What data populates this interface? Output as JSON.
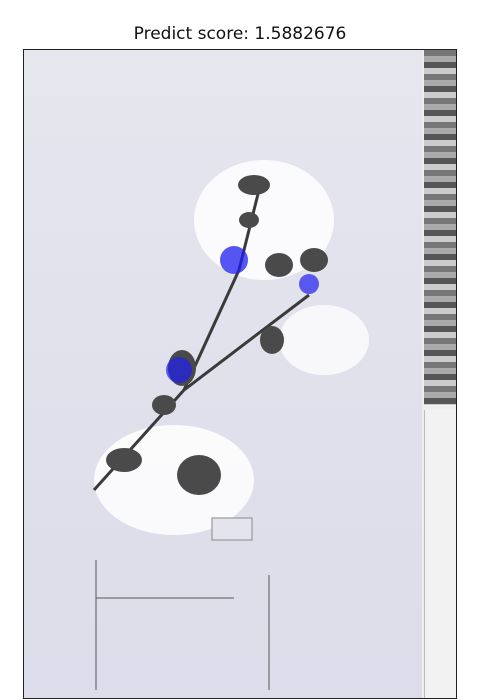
{
  "header": {
    "title": "Predict score: 1.5882676"
  },
  "colors": {
    "heat_low": "#e0e0ee",
    "heat_mid": "#a9a9d6",
    "heat_high": "#1e1ef0",
    "plant": "#3a3a3a"
  },
  "icons": {
    "specimen": "herbarium-sheet-icon",
    "color_chart": "color-calibration-chart-icon",
    "scale": "scale-ruler-icon"
  }
}
